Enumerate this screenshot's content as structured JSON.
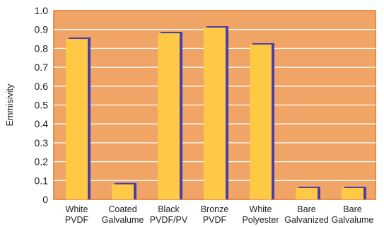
{
  "chart_data": {
    "type": "bar",
    "title": "",
    "xlabel": "",
    "ylabel": "Emmisivity",
    "ylim": [
      0,
      1.0
    ],
    "yticks": [
      "0",
      "0.1",
      "0.2",
      "0.3",
      "0.4",
      "0.5",
      "0.6",
      "0.7",
      "0.8",
      "0.9",
      "1.0"
    ],
    "categories": [
      [
        "White",
        "PVDF"
      ],
      [
        "Coated",
        "Galvalume"
      ],
      [
        "Black",
        "PVDF/PV"
      ],
      [
        "Bronze",
        "PVDF"
      ],
      [
        "White",
        "Polyester"
      ],
      [
        "Bare",
        "Galvanized"
      ],
      [
        "Bare",
        "Galvalume"
      ]
    ],
    "values": [
      0.85,
      0.08,
      0.88,
      0.91,
      0.82,
      0.06,
      0.06
    ],
    "grid": true,
    "legend": "none"
  },
  "colors": {
    "plot_background": "#F0A466",
    "plot_border": "#E8742A",
    "gridline": "#FFFFFF",
    "bar_fill": "#FFC845",
    "bar_shadow": "#4A3FA8"
  }
}
